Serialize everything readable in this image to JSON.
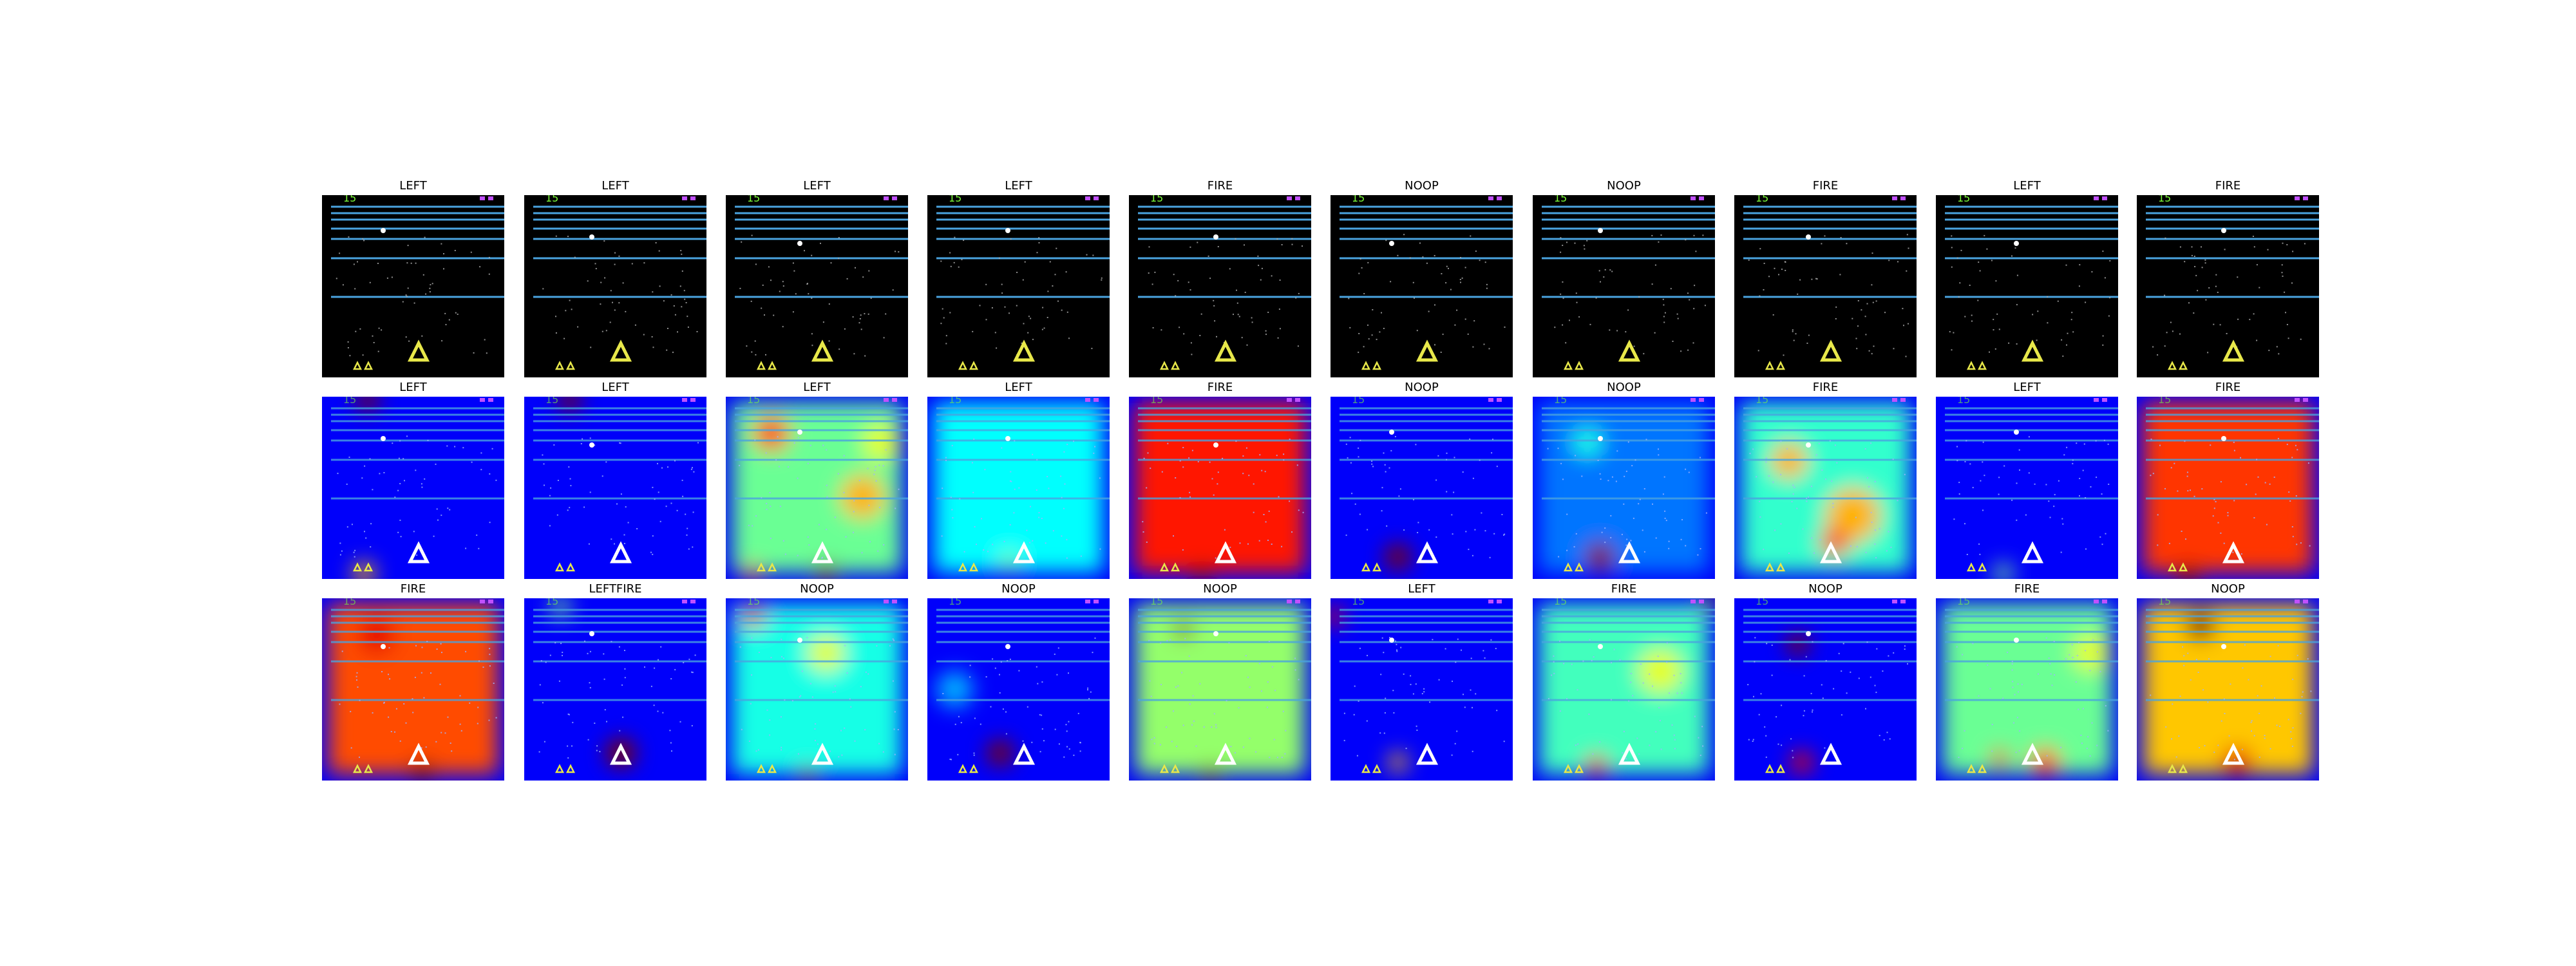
{
  "game": {
    "score": "15",
    "background_color": "#000000",
    "lane_color": "#4aa3df",
    "ship_color": "#e8e84a",
    "score_color": "#7cfc3a",
    "lives_color": "#c050ff"
  },
  "rows": [
    {
      "kind": "frame",
      "panels": [
        {
          "label": "LEFT"
        },
        {
          "label": "LEFT"
        },
        {
          "label": "LEFT"
        },
        {
          "label": "LEFT"
        },
        {
          "label": "FIRE"
        },
        {
          "label": "NOOP"
        },
        {
          "label": "NOOP"
        },
        {
          "label": "FIRE"
        },
        {
          "label": "LEFT"
        },
        {
          "label": "FIRE"
        }
      ]
    },
    {
      "kind": "saliency",
      "panels": [
        {
          "label": "LEFT",
          "intensity": 0.05,
          "blobs": [
            [
              0.25,
              0.02,
              0.06,
              1.0
            ],
            [
              0.23,
              0.97,
              0.06,
              0.7
            ]
          ]
        },
        {
          "label": "LEFT",
          "intensity": 0.05,
          "blobs": [
            [
              0.25,
              0.02,
              0.06,
              1.0
            ]
          ]
        },
        {
          "label": "LEFT",
          "intensity": 0.45,
          "blobs": [
            [
              0.25,
              0.2,
              0.1,
              0.8
            ],
            [
              0.55,
              0.97,
              0.06,
              1.0
            ],
            [
              0.15,
              0.97,
              0.05,
              0.9
            ],
            [
              0.75,
              0.55,
              0.12,
              0.7
            ],
            [
              0.85,
              0.25,
              0.1,
              0.6
            ]
          ]
        },
        {
          "label": "LEFT",
          "intensity": 0.32,
          "blobs": [
            [
              0.45,
              0.9,
              0.05,
              0.5
            ]
          ]
        },
        {
          "label": "FIRE",
          "intensity": 0.92,
          "blobs": [
            [
              0.4,
              0.97,
              0.05,
              1.0
            ]
          ]
        },
        {
          "label": "NOOP",
          "intensity": 0.08,
          "blobs": [
            [
              0.37,
              0.88,
              0.07,
              1.0
            ]
          ]
        },
        {
          "label": "NOOP",
          "intensity": 0.15,
          "blobs": [
            [
              0.37,
              0.88,
              0.08,
              1.0
            ],
            [
              0.3,
              0.25,
              0.08,
              0.4
            ]
          ]
        },
        {
          "label": "FIRE",
          "intensity": 0.38,
          "blobs": [
            [
              0.3,
              0.35,
              0.1,
              0.7
            ],
            [
              0.65,
              0.65,
              0.15,
              0.7
            ],
            [
              0.55,
              0.8,
              0.08,
              0.8
            ]
          ]
        },
        {
          "label": "LEFT",
          "intensity": 0.05,
          "blobs": [
            [
              0.37,
              0.97,
              0.05,
              0.5
            ]
          ]
        },
        {
          "label": "FIRE",
          "intensity": 0.88,
          "blobs": [
            [
              0.28,
              0.98,
              0.06,
              1.0
            ]
          ]
        }
      ]
    },
    {
      "kind": "saliency",
      "panels": [
        {
          "label": "FIRE",
          "intensity": 0.85,
          "blobs": [
            [
              0.55,
              0.95,
              0.06,
              1.0
            ],
            [
              0.3,
              0.2,
              0.1,
              0.9
            ]
          ]
        },
        {
          "label": "LEFTFIRE",
          "intensity": 0.05,
          "blobs": [
            [
              0.53,
              0.85,
              0.08,
              1.0
            ],
            [
              0.2,
              0.05,
              0.05,
              0.5
            ]
          ]
        },
        {
          "label": "NOOP",
          "intensity": 0.35,
          "blobs": [
            [
              0.15,
              0.1,
              0.06,
              0.9
            ],
            [
              0.45,
              0.97,
              0.05,
              1.0
            ],
            [
              0.55,
              0.3,
              0.1,
              0.6
            ]
          ]
        },
        {
          "label": "NOOP",
          "intensity": 0.1,
          "blobs": [
            [
              0.4,
              0.85,
              0.07,
              1.0
            ],
            [
              0.15,
              0.5,
              0.1,
              0.3
            ]
          ]
        },
        {
          "label": "NOOP",
          "intensity": 0.5,
          "blobs": [
            [
              0.3,
              0.17,
              0.05,
              1.0
            ],
            [
              0.45,
              0.97,
              0.05,
              1.0
            ]
          ]
        },
        {
          "label": "LEFT",
          "intensity": 0.05,
          "blobs": [
            [
              0.02,
              0.1,
              0.05,
              0.9
            ],
            [
              0.37,
              0.9,
              0.05,
              0.7
            ]
          ]
        },
        {
          "label": "FIRE",
          "intensity": 0.4,
          "blobs": [
            [
              0.97,
              0.02,
              0.05,
              1.0
            ],
            [
              0.35,
              0.92,
              0.06,
              0.9
            ],
            [
              0.7,
              0.4,
              0.12,
              0.6
            ]
          ]
        },
        {
          "label": "NOOP",
          "intensity": 0.05,
          "blobs": [
            [
              0.35,
              0.25,
              0.06,
              1.0
            ],
            [
              0.37,
              0.9,
              0.06,
              0.9
            ]
          ]
        },
        {
          "label": "FIRE",
          "intensity": 0.45,
          "blobs": [
            [
              0.35,
              0.88,
              0.05,
              0.9
            ],
            [
              0.6,
              0.9,
              0.08,
              0.8
            ],
            [
              0.85,
              0.3,
              0.1,
              0.6
            ]
          ]
        },
        {
          "label": "NOOP",
          "intensity": 0.7,
          "blobs": [
            [
              0.35,
              0.15,
              0.08,
              1.0
            ],
            [
              0.55,
              0.9,
              0.08,
              0.9
            ]
          ]
        }
      ]
    }
  ]
}
